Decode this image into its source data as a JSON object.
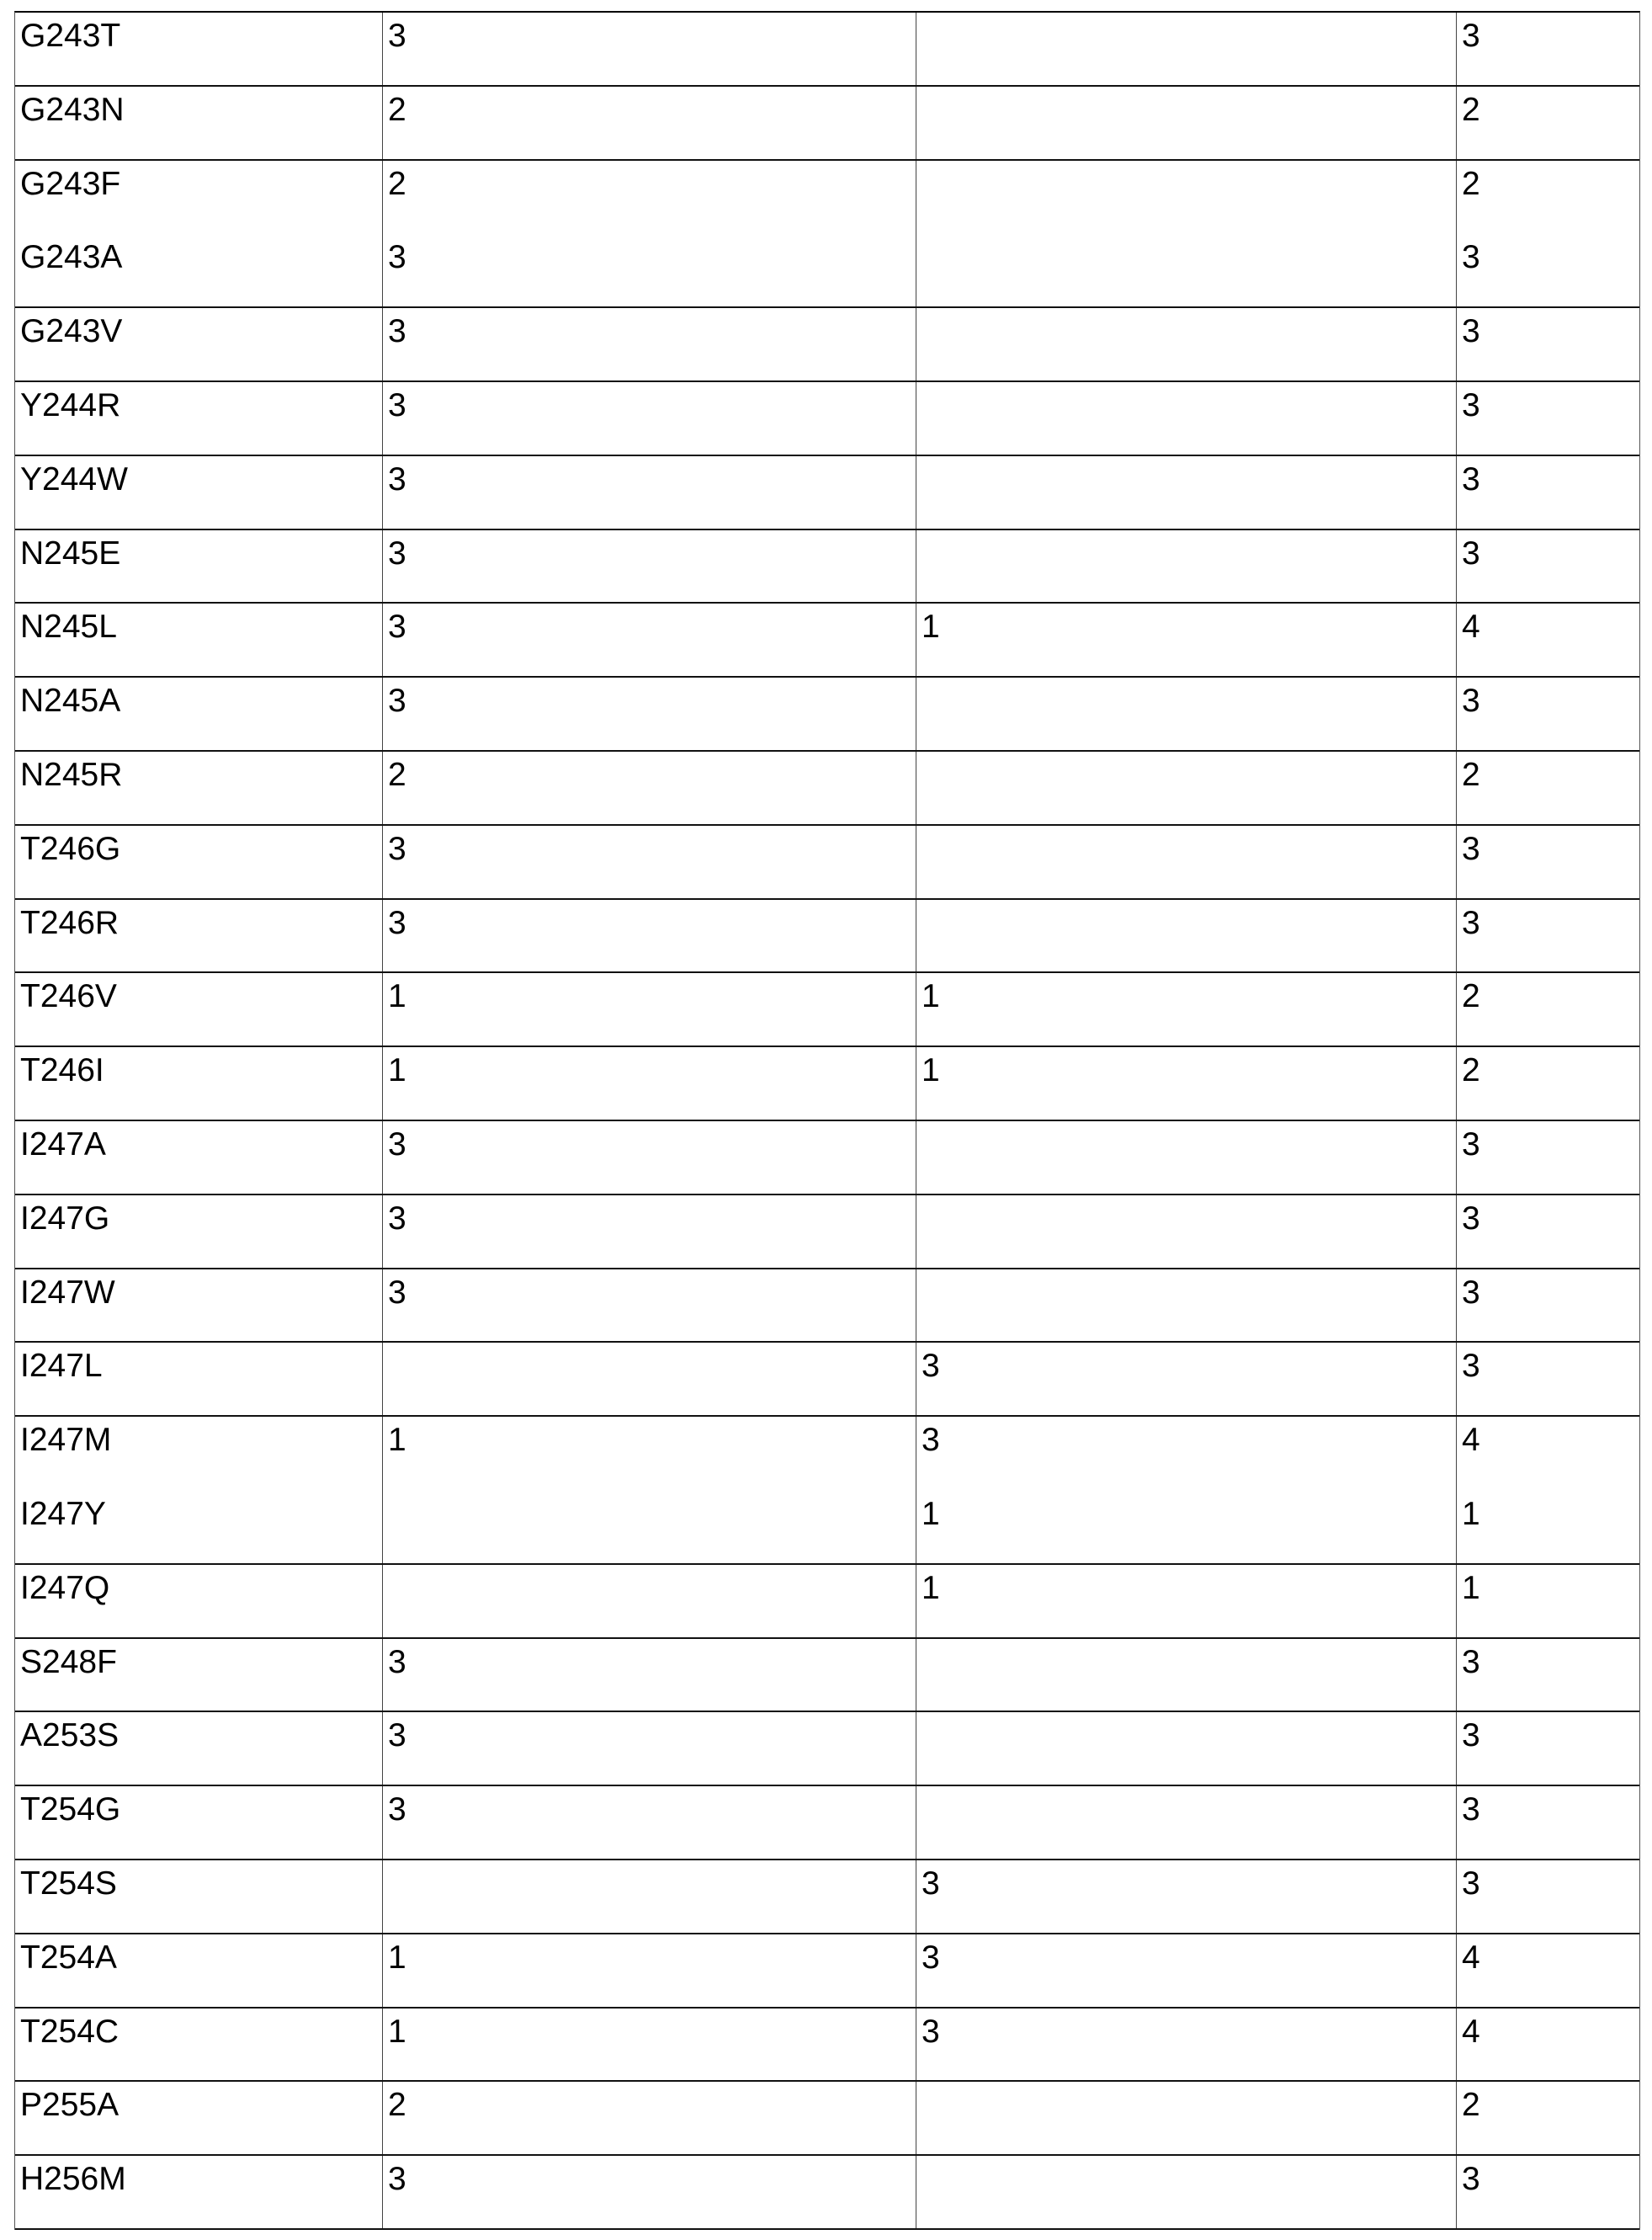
{
  "table": {
    "groups": [
      [
        [
          "G243T",
          "3",
          "",
          "3"
        ]
      ],
      [
        [
          "G243N",
          "2",
          "",
          "2"
        ]
      ],
      [
        [
          "G243F",
          "2",
          "",
          "2"
        ],
        [
          "G243A",
          "3",
          "",
          "3"
        ]
      ],
      [
        [
          "G243V",
          "3",
          "",
          "3"
        ]
      ],
      [
        [
          "Y244R",
          "3",
          "",
          "3"
        ]
      ],
      [
        [
          "Y244W",
          "3",
          "",
          "3"
        ]
      ],
      [
        [
          "N245E",
          "3",
          "",
          "3"
        ]
      ],
      [
        [
          "N245L",
          "3",
          "1",
          "4"
        ]
      ],
      [
        [
          "N245A",
          "3",
          "",
          "3"
        ]
      ],
      [
        [
          "N245R",
          "2",
          "",
          "2"
        ]
      ],
      [
        [
          "T246G",
          "3",
          "",
          "3"
        ]
      ],
      [
        [
          "T246R",
          "3",
          "",
          "3"
        ]
      ],
      [
        [
          "T246V",
          "1",
          "1",
          "2"
        ]
      ],
      [
        [
          "T246I",
          "1",
          "1",
          "2"
        ]
      ],
      [
        [
          "I247A",
          "3",
          "",
          "3"
        ]
      ],
      [
        [
          "I247G",
          "3",
          "",
          "3"
        ]
      ],
      [
        [
          "I247W",
          "3",
          "",
          "3"
        ]
      ],
      [
        [
          "I247L",
          "",
          "3",
          "3"
        ]
      ],
      [
        [
          "I247M",
          "1",
          "3",
          "4"
        ],
        [
          "I247Y",
          "",
          "1",
          "1"
        ]
      ],
      [
        [
          "I247Q",
          "",
          "1",
          "1"
        ]
      ],
      [
        [
          "S248F",
          "3",
          "",
          "3"
        ]
      ],
      [
        [
          "A253S",
          "3",
          "",
          "3"
        ]
      ],
      [
        [
          "T254G",
          "3",
          "",
          "3"
        ]
      ],
      [
        [
          "T254S",
          "",
          "3",
          "3"
        ]
      ],
      [
        [
          "T254A",
          "1",
          "3",
          "4"
        ]
      ],
      [
        [
          "T254C",
          "1",
          "3",
          "4"
        ]
      ],
      [
        [
          "P255A",
          "2",
          "",
          "2"
        ]
      ],
      [
        [
          "H256M",
          "3",
          "",
          "3"
        ]
      ]
    ]
  }
}
